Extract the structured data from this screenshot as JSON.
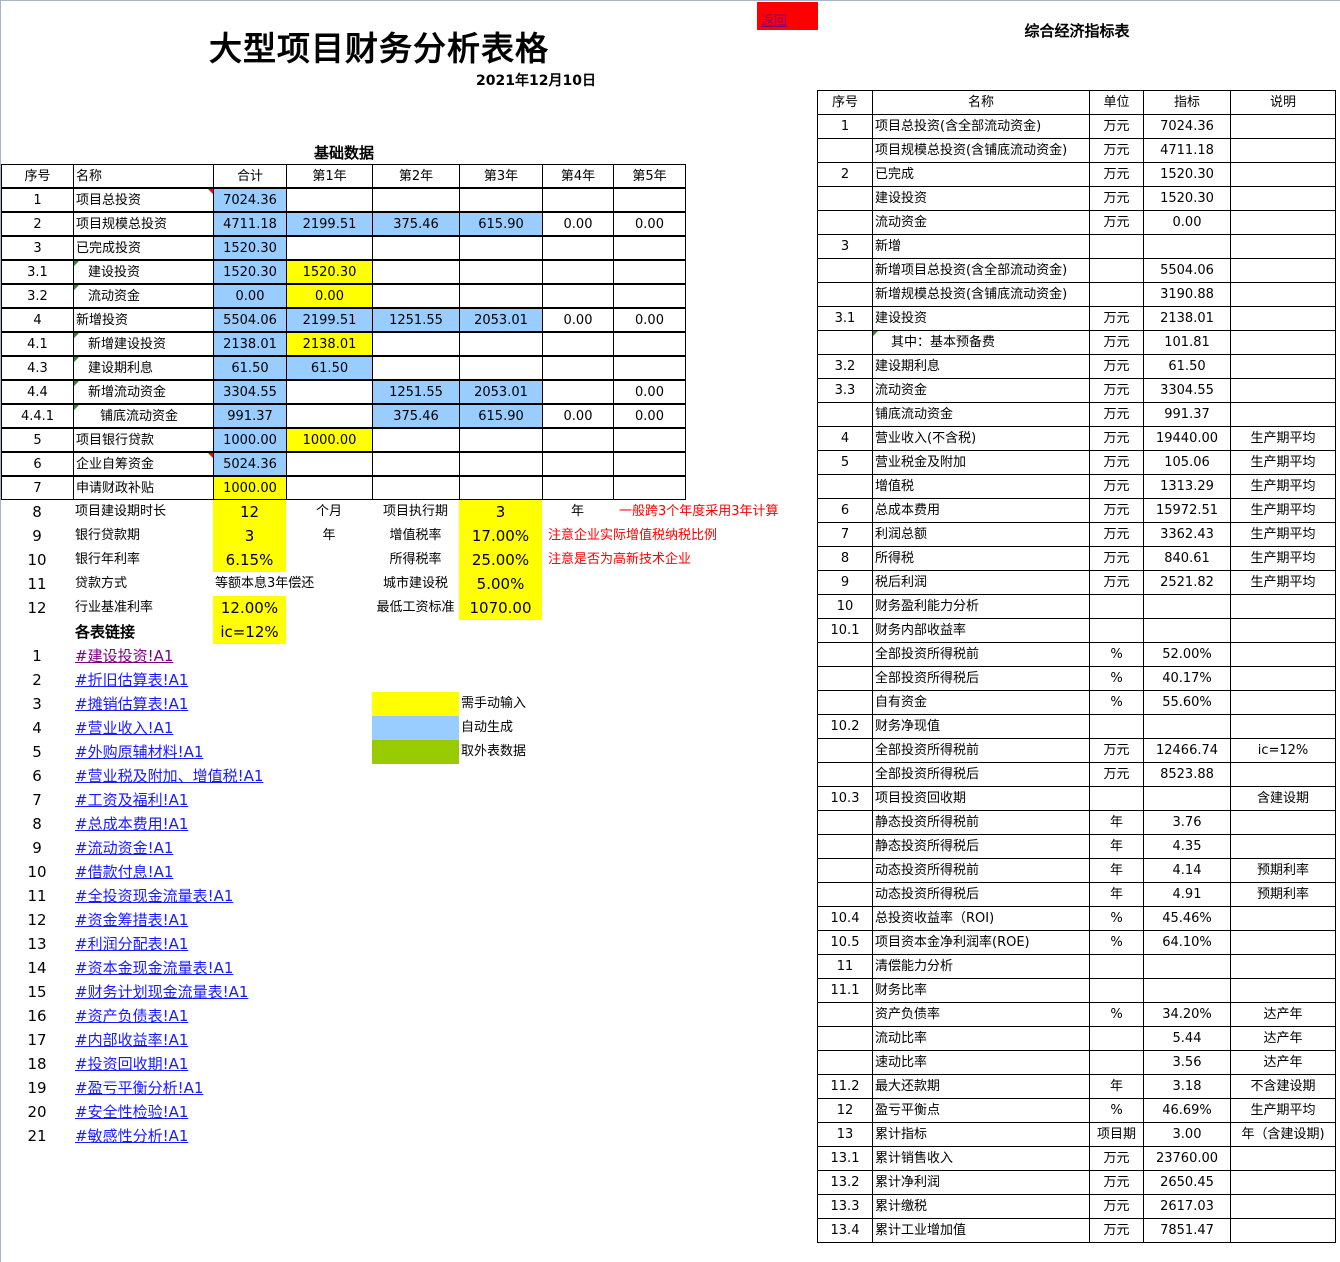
{
  "back_link": "返回",
  "title": "大型项目财务分析表格",
  "date": "2021年12月10日",
  "basic": {
    "subtitle": "基础数据",
    "headers": [
      "序号",
      "名称",
      "合计",
      "第1年",
      "第2年",
      "第3年",
      "第4年",
      "第5年"
    ],
    "rows": [
      {
        "seq": "1",
        "name": "项目总投资",
        "indent": 0,
        "values": [
          "7024.36",
          "",
          "",
          "",
          "",
          ""
        ],
        "fills": [
          "auto",
          "",
          "",
          "",
          "",
          ""
        ]
      },
      {
        "seq": "2",
        "name": "项目规模总投资",
        "indent": 0,
        "values": [
          "4711.18",
          "2199.51",
          "375.46",
          "615.90",
          "0.00",
          "0.00"
        ],
        "fills": [
          "auto",
          "auto",
          "auto",
          "auto",
          "",
          ""
        ]
      },
      {
        "seq": "3",
        "name": "已完成投资",
        "indent": 0,
        "values": [
          "1520.30",
          "",
          "",
          "",
          "",
          ""
        ],
        "fills": [
          "auto",
          "",
          "",
          "",
          "",
          ""
        ]
      },
      {
        "seq": "3.1",
        "name": "建设投资",
        "indent": 1,
        "values": [
          "1520.30",
          "1520.30",
          "",
          "",
          "",
          ""
        ],
        "fills": [
          "auto",
          "manual",
          "",
          "",
          "",
          ""
        ]
      },
      {
        "seq": "3.2",
        "name": "流动资金",
        "indent": 1,
        "values": [
          "0.00",
          "0.00",
          "",
          "",
          "",
          ""
        ],
        "fills": [
          "auto",
          "manual",
          "",
          "",
          "",
          ""
        ]
      },
      {
        "seq": "4",
        "name": "新增投资",
        "indent": 0,
        "values": [
          "5504.06",
          "2199.51",
          "1251.55",
          "2053.01",
          "0.00",
          "0.00"
        ],
        "fills": [
          "auto",
          "auto",
          "auto",
          "auto",
          "",
          ""
        ]
      },
      {
        "seq": "4.1",
        "name": "新增建设投资",
        "indent": 1,
        "values": [
          "2138.01",
          "2138.01",
          "",
          "",
          "",
          ""
        ],
        "fills": [
          "auto",
          "manual",
          "",
          "",
          "",
          ""
        ]
      },
      {
        "seq": "4.3",
        "name": "建设期利息",
        "indent": 1,
        "values": [
          "61.50",
          "61.50",
          "",
          "",
          "",
          ""
        ],
        "fills": [
          "auto",
          "auto",
          "",
          "",
          "",
          ""
        ]
      },
      {
        "seq": "4.4",
        "name": "新增流动资金",
        "indent": 1,
        "values": [
          "3304.55",
          "",
          "1251.55",
          "2053.01",
          "",
          "0.00"
        ],
        "fills": [
          "auto",
          "",
          "auto",
          "auto",
          "",
          ""
        ]
      },
      {
        "seq": "4.4.1",
        "name": "铺底流动资金",
        "indent": 2,
        "values": [
          "991.37",
          "",
          "375.46",
          "615.90",
          "0.00",
          "0.00"
        ],
        "fills": [
          "auto",
          "",
          "auto",
          "auto",
          "",
          ""
        ]
      },
      {
        "seq": "5",
        "name": "项目银行贷款",
        "indent": 0,
        "values": [
          "1000.00",
          "1000.00",
          "",
          "",
          "",
          ""
        ],
        "fills": [
          "auto",
          "manual",
          "",
          "",
          "",
          ""
        ]
      },
      {
        "seq": "6",
        "name": "企业自筹资金",
        "indent": 0,
        "values": [
          "5024.36",
          "",
          "",
          "",
          "",
          ""
        ],
        "fills": [
          "auto",
          "",
          "",
          "",
          "",
          ""
        ]
      },
      {
        "seq": "7",
        "name": "申请财政补贴",
        "indent": 0,
        "values": [
          "1000.00",
          "",
          "",
          "",
          "",
          ""
        ],
        "fills": [
          "manual",
          "",
          "",
          "",
          "",
          ""
        ]
      }
    ]
  },
  "params": [
    {
      "seq": "8",
      "name": "项目建设期时长",
      "value": "12",
      "unit": "个月",
      "label2": "项目执行期",
      "value2": "3",
      "unit2": "年",
      "note": "一般跨3个年度采用3年计算"
    },
    {
      "seq": "9",
      "name": "银行贷款期",
      "value": "3",
      "unit": "年",
      "label2": "增值税率",
      "value2": "17.00%",
      "unit2": "",
      "note": "注意企业实际增值税纳税比例"
    },
    {
      "seq": "10",
      "name": "银行年利率",
      "value": "6.15%",
      "unit": "",
      "label2": "所得税率",
      "value2": "25.00%",
      "unit2": "",
      "note": "注意是否为高新技术企业"
    },
    {
      "seq": "11",
      "name": "贷款方式",
      "value": "等额本息3年偿还",
      "unit": "",
      "label2": "城市建设税",
      "value2": "5.00%",
      "unit2": "",
      "note": ""
    },
    {
      "seq": "12",
      "name": "行业基准利率",
      "value": "12.00%",
      "unit": "",
      "label2": "最低工资标准",
      "value2": "1070.00",
      "unit2": "",
      "note": ""
    }
  ],
  "links_heading": "各表链接",
  "ic_value": "ic=12%",
  "links": [
    "#建设投资!A1",
    "#折旧估算表!A1",
    "#摊销估算表!A1",
    "#营业收入!A1",
    "#外购原辅材料!A1",
    "#营业税及附加、增值税!A1",
    "#工资及福利!A1",
    "#总成本费用!A1",
    "#流动资金!A1",
    "#借款付息!A1",
    "#全投资现金流量表!A1",
    "#资金筹措表!A1",
    "#利润分配表!A1",
    "#资本金现金流量表!A1",
    "#财务计划现金流量表!A1",
    "#资产负债表!A1",
    "#内部收益率!A1",
    "#投资回收期!A1",
    "#盈亏平衡分析!A1",
    "#安全性检验!A1",
    "#敏感性分析!A1"
  ],
  "legend": [
    {
      "label": "需手动输入",
      "color": "#ffff00"
    },
    {
      "label": "自动生成",
      "color": "#99ccff"
    },
    {
      "label": "取外表数据",
      "color": "#99cc00"
    }
  ],
  "colors": {
    "manual": "#ffff00",
    "auto": "#99ccff",
    "external": "#99cc00",
    "note": "#ff0000",
    "back_button": "#ff0000",
    "link": "#1a1aff",
    "visited_link": "#800080"
  },
  "summary": {
    "title": "综合经济指标表",
    "headers": [
      "序号",
      "名称",
      "单位",
      "指标",
      "说明"
    ],
    "rows": [
      {
        "s": "1",
        "n": "项目总投资(含全部流动资金)",
        "u": "万元",
        "v": "7024.36",
        "d": ""
      },
      {
        "s": "",
        "n": "项目规模总投资(含铺底流动资金)",
        "u": "万元",
        "v": "4711.18",
        "d": ""
      },
      {
        "s": "2",
        "n": "已完成",
        "u": "万元",
        "v": "1520.30",
        "d": ""
      },
      {
        "s": "",
        "n": "建设投资",
        "u": "万元",
        "v": "1520.30",
        "d": ""
      },
      {
        "s": "",
        "n": "流动资金",
        "u": "万元",
        "v": "0.00",
        "d": ""
      },
      {
        "s": "3",
        "n": "新增",
        "u": "",
        "v": "",
        "d": ""
      },
      {
        "s": "",
        "n": "新增项目总投资(含全部流动资金)",
        "u": "",
        "v": "5504.06",
        "d": ""
      },
      {
        "s": "",
        "n": "新增规模总投资(含铺底流动资金)",
        "u": "",
        "v": "3190.88",
        "d": ""
      },
      {
        "s": "3.1",
        "n": "建设投资",
        "u": "万元",
        "v": "2138.01",
        "d": ""
      },
      {
        "s": "",
        "n": "其中：基本预备费",
        "u": "万元",
        "v": "101.81",
        "d": "",
        "indent": true
      },
      {
        "s": "3.2",
        "n": "建设期利息",
        "u": "万元",
        "v": "61.50",
        "d": ""
      },
      {
        "s": "3.3",
        "n": "流动资金",
        "u": "万元",
        "v": "3304.55",
        "d": ""
      },
      {
        "s": "",
        "n": "铺底流动资金",
        "u": "万元",
        "v": "991.37",
        "d": ""
      },
      {
        "s": "4",
        "n": "营业收入(不含税)",
        "u": "万元",
        "v": "19440.00",
        "d": "生产期平均"
      },
      {
        "s": "5",
        "n": "营业税金及附加",
        "u": "万元",
        "v": "105.06",
        "d": "生产期平均"
      },
      {
        "s": "",
        "n": "增值税",
        "u": "万元",
        "v": "1313.29",
        "d": "生产期平均"
      },
      {
        "s": "6",
        "n": "总成本费用",
        "u": "万元",
        "v": "15972.51",
        "d": "生产期平均"
      },
      {
        "s": "7",
        "n": "利润总额",
        "u": "万元",
        "v": "3362.43",
        "d": "生产期平均"
      },
      {
        "s": "8",
        "n": "所得税",
        "u": "万元",
        "v": "840.61",
        "d": "生产期平均"
      },
      {
        "s": "9",
        "n": "税后利润",
        "u": "万元",
        "v": "2521.82",
        "d": "生产期平均"
      },
      {
        "s": "10",
        "n": "财务盈利能力分析",
        "u": "",
        "v": "",
        "d": ""
      },
      {
        "s": "10.1",
        "n": "财务内部收益率",
        "u": "",
        "v": "",
        "d": ""
      },
      {
        "s": "",
        "n": "全部投资所得税前",
        "u": "%",
        "v": "52.00%",
        "d": ""
      },
      {
        "s": "",
        "n": "全部投资所得税后",
        "u": "%",
        "v": "40.17%",
        "d": ""
      },
      {
        "s": "",
        "n": "自有资金",
        "u": "%",
        "v": "55.60%",
        "d": ""
      },
      {
        "s": "10.2",
        "n": "财务净现值",
        "u": "",
        "v": "",
        "d": ""
      },
      {
        "s": "",
        "n": "全部投资所得税前",
        "u": "万元",
        "v": "12466.74",
        "d": "ic=12%"
      },
      {
        "s": "",
        "n": "全部投资所得税后",
        "u": "万元",
        "v": "8523.88",
        "d": ""
      },
      {
        "s": "10.3",
        "n": "项目投资回收期",
        "u": "",
        "v": "",
        "d": "含建设期"
      },
      {
        "s": "",
        "n": "静态投资所得税前",
        "u": "年",
        "v": "3.76",
        "d": ""
      },
      {
        "s": "",
        "n": "静态投资所得税后",
        "u": "年",
        "v": "4.35",
        "d": ""
      },
      {
        "s": "",
        "n": "动态投资所得税前",
        "u": "年",
        "v": "4.14",
        "d": "预期利率"
      },
      {
        "s": "",
        "n": "动态投资所得税后",
        "u": "年",
        "v": "4.91",
        "d": "预期利率"
      },
      {
        "s": "10.4",
        "n": "总投资收益率（ROI)",
        "u": "%",
        "v": "45.46%",
        "d": ""
      },
      {
        "s": "10.5",
        "n": "项目资本金净利润率(ROE)",
        "u": "%",
        "v": "64.10%",
        "d": ""
      },
      {
        "s": "11",
        "n": "清偿能力分析",
        "u": "",
        "v": "",
        "d": ""
      },
      {
        "s": "11.1",
        "n": "财务比率",
        "u": "",
        "v": "",
        "d": ""
      },
      {
        "s": "",
        "n": "资产负债率",
        "u": "%",
        "v": "34.20%",
        "d": "达产年"
      },
      {
        "s": "",
        "n": "流动比率",
        "u": "",
        "v": "5.44",
        "d": "达产年"
      },
      {
        "s": "",
        "n": "速动比率",
        "u": "",
        "v": "3.56",
        "d": "达产年"
      },
      {
        "s": "11.2",
        "n": "最大还款期",
        "u": "年",
        "v": "3.18",
        "d": "不含建设期"
      },
      {
        "s": "12",
        "n": "盈亏平衡点",
        "u": "%",
        "v": "46.69%",
        "d": "生产期平均"
      },
      {
        "s": "13",
        "n": "累计指标",
        "u": "项目期",
        "v": "3.00",
        "d": "年（含建设期)"
      },
      {
        "s": "13.1",
        "n": "累计销售收入",
        "u": "万元",
        "v": "23760.00",
        "d": ""
      },
      {
        "s": "13.2",
        "n": "累计净利润",
        "u": "万元",
        "v": "2650.45",
        "d": ""
      },
      {
        "s": "13.3",
        "n": "累计缴税",
        "u": "万元",
        "v": "2617.03",
        "d": ""
      },
      {
        "s": "13.4",
        "n": "累计工业增加值",
        "u": "万元",
        "v": "7851.47",
        "d": ""
      }
    ]
  }
}
